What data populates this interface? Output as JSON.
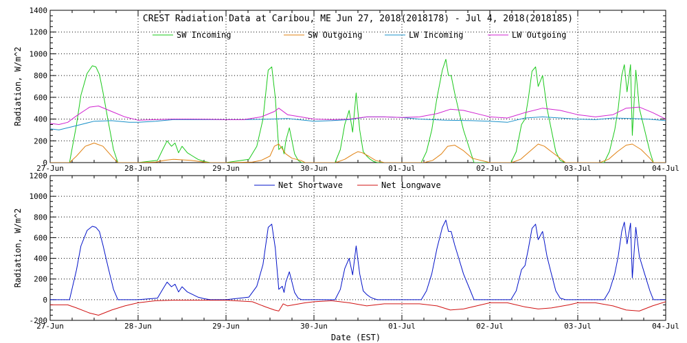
{
  "chart_data": [
    {
      "type": "line",
      "title": "CREST Radiation Data at Caribou, ME   Jun 27, 2018(2018178) - Jul  4, 2018(2018185)",
      "ylabel": "Radiation, W/m^2",
      "xlabel": "",
      "ylim": [
        0,
        1400
      ],
      "yticks": [
        0,
        200,
        400,
        600,
        800,
        1000,
        1200,
        1400
      ],
      "xlim": [
        0,
        7
      ],
      "xtick_labels": [
        "27-Jun",
        "28-Jun",
        "29-Jun",
        "30-Jun",
        "01-Jul",
        "02-Jul",
        "03-Jul",
        "04-Jul"
      ],
      "grid": true,
      "legend_placement": "top",
      "series": [
        {
          "name": "SW Incoming",
          "color": "#19c819",
          "x": [
            0,
            0.22,
            0.3,
            0.35,
            0.42,
            0.48,
            0.52,
            0.56,
            0.6,
            0.66,
            0.72,
            0.77,
            1.0,
            1.22,
            1.28,
            1.33,
            1.38,
            1.42,
            1.46,
            1.5,
            1.56,
            1.62,
            1.68,
            1.75,
            1.82,
            2.0,
            2.26,
            2.35,
            2.42,
            2.48,
            2.52,
            2.56,
            2.6,
            2.64,
            2.66,
            2.68,
            2.72,
            2.78,
            2.82,
            2.86,
            2.88,
            2.92,
            3.0,
            3.24,
            3.3,
            3.35,
            3.4,
            3.44,
            3.48,
            3.52,
            3.56,
            3.6,
            3.64,
            3.68,
            3.72,
            3.78,
            3.85,
            4.0,
            4.22,
            4.28,
            4.34,
            4.4,
            4.46,
            4.5,
            4.53,
            4.56,
            4.6,
            4.64,
            4.7,
            4.78,
            4.82,
            5.0,
            5.24,
            5.3,
            5.36,
            5.4,
            5.44,
            5.48,
            5.52,
            5.55,
            5.6,
            5.65,
            5.7,
            5.75,
            5.8,
            5.86,
            6.0,
            6.24,
            6.3,
            6.36,
            6.42,
            6.46,
            6.5,
            6.53,
            6.56,
            6.6,
            6.62,
            6.66,
            6.7,
            6.76,
            6.82,
            6.86,
            7.0
          ],
          "y": [
            0,
            0,
            350,
            620,
            820,
            890,
            880,
            810,
            650,
            380,
            120,
            0,
            0,
            20,
            120,
            200,
            150,
            180,
            90,
            150,
            90,
            60,
            30,
            10,
            0,
            0,
            30,
            150,
            400,
            850,
            880,
            600,
            120,
            150,
            80,
            200,
            320,
            80,
            20,
            0,
            0,
            0,
            0,
            0,
            120,
            350,
            480,
            280,
            640,
            300,
            100,
            60,
            30,
            10,
            0,
            0,
            0,
            0,
            0,
            100,
            300,
            600,
            850,
            950,
            800,
            800,
            640,
            500,
            300,
            100,
            0,
            0,
            0,
            100,
            350,
            400,
            600,
            840,
            880,
            700,
            800,
            500,
            300,
            100,
            20,
            0,
            0,
            0,
            0,
            100,
            300,
            500,
            800,
            900,
            650,
            900,
            250,
            850,
            500,
            300,
            100,
            0,
            0
          ]
        },
        {
          "name": "SW Outgoing",
          "color": "#e08010",
          "x": [
            0,
            0.22,
            0.3,
            0.4,
            0.5,
            0.6,
            0.72,
            0.77,
            1.0,
            1.2,
            1.3,
            1.4,
            1.5,
            1.6,
            1.7,
            1.8,
            2.0,
            2.3,
            2.4,
            2.5,
            2.55,
            2.6,
            2.68,
            2.75,
            2.85,
            2.9,
            3.0,
            3.25,
            3.35,
            3.45,
            3.5,
            3.55,
            3.62,
            3.7,
            3.8,
            4.0,
            4.25,
            4.35,
            4.45,
            4.52,
            4.6,
            4.7,
            4.8,
            5.0,
            5.25,
            5.35,
            5.45,
            5.55,
            5.62,
            5.7,
            5.8,
            5.86,
            6.0,
            6.25,
            6.35,
            6.45,
            6.55,
            6.62,
            6.72,
            6.82,
            6.86,
            7.0
          ],
          "y": [
            0,
            0,
            60,
            150,
            180,
            150,
            40,
            0,
            0,
            5,
            20,
            30,
            25,
            20,
            10,
            0,
            0,
            5,
            20,
            60,
            150,
            170,
            80,
            40,
            20,
            0,
            0,
            0,
            30,
            80,
            100,
            90,
            60,
            20,
            0,
            0,
            0,
            20,
            80,
            150,
            160,
            110,
            40,
            0,
            0,
            30,
            100,
            170,
            150,
            100,
            40,
            0,
            0,
            0,
            30,
            100,
            160,
            170,
            120,
            40,
            0,
            0
          ]
        },
        {
          "name": "LW Incoming",
          "color": "#1890c8",
          "x": [
            0,
            0.1,
            0.3,
            0.5,
            0.7,
            0.9,
            1.0,
            1.2,
            1.4,
            1.6,
            1.8,
            2.0,
            2.2,
            2.5,
            2.7,
            3.0,
            3.2,
            3.4,
            3.6,
            3.8,
            4.0,
            4.2,
            4.5,
            4.8,
            5.0,
            5.2,
            5.4,
            5.6,
            5.8,
            6.0,
            6.2,
            6.4,
            6.6,
            6.8,
            7.0
          ],
          "y": [
            310,
            300,
            340,
            380,
            385,
            370,
            370,
            380,
            395,
            395,
            395,
            395,
            395,
            400,
            405,
            380,
            385,
            395,
            420,
            420,
            415,
            400,
            390,
            385,
            380,
            370,
            410,
            420,
            410,
            400,
            395,
            410,
            405,
            400,
            385
          ]
        },
        {
          "name": "LW Outgoing",
          "color": "#d020d0",
          "x": [
            0,
            0.1,
            0.2,
            0.3,
            0.45,
            0.55,
            0.7,
            0.85,
            1.0,
            1.2,
            1.4,
            1.6,
            1.8,
            2.0,
            2.2,
            2.4,
            2.55,
            2.6,
            2.7,
            2.85,
            3.0,
            3.2,
            3.4,
            3.6,
            3.8,
            4.0,
            4.2,
            4.4,
            4.55,
            4.7,
            4.9,
            5.0,
            5.2,
            5.4,
            5.6,
            5.8,
            6.0,
            6.2,
            6.4,
            6.55,
            6.7,
            6.85,
            7.0
          ],
          "y": [
            360,
            350,
            370,
            430,
            510,
            520,
            470,
            420,
            390,
            395,
            400,
            400,
            398,
            395,
            395,
            420,
            470,
            500,
            440,
            420,
            400,
            395,
            400,
            420,
            420,
            415,
            420,
            450,
            490,
            480,
            440,
            420,
            410,
            460,
            500,
            480,
            440,
            420,
            440,
            500,
            510,
            460,
            400
          ]
        }
      ]
    },
    {
      "type": "line",
      "title": "",
      "ylabel": "Radiation, W/m^2",
      "xlabel": "Date (EST)",
      "ylim": [
        -200,
        1200
      ],
      "yticks": [
        -200,
        0,
        200,
        400,
        600,
        800,
        1000,
        1200
      ],
      "xlim": [
        0,
        7
      ],
      "xtick_labels": [
        "27-Jun",
        "28-Jun",
        "29-Jun",
        "30-Jun",
        "01-Jul",
        "02-Jul",
        "03-Jul",
        "04-Jul"
      ],
      "grid": true,
      "legend_placement": "top",
      "series": [
        {
          "name": "Net Shortwave",
          "color": "#0010c8",
          "x": [
            0,
            0.22,
            0.3,
            0.35,
            0.42,
            0.48,
            0.52,
            0.56,
            0.6,
            0.66,
            0.72,
            0.77,
            1.0,
            1.22,
            1.28,
            1.33,
            1.38,
            1.42,
            1.46,
            1.5,
            1.56,
            1.62,
            1.68,
            1.75,
            1.82,
            2.0,
            2.26,
            2.35,
            2.42,
            2.48,
            2.52,
            2.56,
            2.6,
            2.64,
            2.66,
            2.68,
            2.72,
            2.78,
            2.82,
            2.86,
            2.88,
            2.92,
            3.0,
            3.24,
            3.3,
            3.35,
            3.4,
            3.44,
            3.48,
            3.52,
            3.56,
            3.6,
            3.64,
            3.68,
            3.72,
            3.78,
            3.85,
            4.0,
            4.22,
            4.28,
            4.34,
            4.4,
            4.46,
            4.5,
            4.53,
            4.56,
            4.6,
            4.64,
            4.7,
            4.78,
            4.82,
            5.0,
            5.24,
            5.3,
            5.36,
            5.4,
            5.44,
            5.48,
            5.52,
            5.55,
            5.6,
            5.65,
            5.7,
            5.75,
            5.8,
            5.86,
            6.0,
            6.24,
            6.3,
            6.36,
            6.42,
            6.46,
            6.5,
            6.53,
            6.56,
            6.6,
            6.62,
            6.66,
            6.7,
            6.76,
            6.82,
            6.86,
            7.0
          ],
          "y": [
            0,
            0,
            290,
            520,
            670,
            710,
            700,
            660,
            530,
            310,
            100,
            0,
            0,
            15,
            100,
            170,
            125,
            150,
            75,
            125,
            75,
            50,
            25,
            10,
            0,
            0,
            25,
            130,
            340,
            700,
            730,
            500,
            100,
            130,
            70,
            170,
            270,
            70,
            15,
            0,
            0,
            0,
            0,
            0,
            100,
            300,
            400,
            240,
            520,
            250,
            85,
            50,
            25,
            10,
            0,
            0,
            0,
            0,
            0,
            85,
            250,
            500,
            700,
            770,
            660,
            660,
            530,
            420,
            250,
            85,
            0,
            0,
            0,
            85,
            290,
            330,
            500,
            690,
            730,
            580,
            660,
            420,
            250,
            85,
            15,
            0,
            0,
            0,
            0,
            85,
            250,
            420,
            660,
            750,
            540,
            740,
            210,
            700,
            420,
            250,
            85,
            0,
            0
          ]
        },
        {
          "name": "Net Longwave",
          "color": "#d01010",
          "x": [
            0,
            0.2,
            0.3,
            0.45,
            0.55,
            0.7,
            0.85,
            1.0,
            1.2,
            1.4,
            1.6,
            1.8,
            2.0,
            2.3,
            2.45,
            2.55,
            2.6,
            2.65,
            2.7,
            2.9,
            3.0,
            3.2,
            3.4,
            3.6,
            3.8,
            4.0,
            4.2,
            4.4,
            4.55,
            4.7,
            4.9,
            5.0,
            5.2,
            5.4,
            5.55,
            5.7,
            5.9,
            6.0,
            6.2,
            6.4,
            6.55,
            6.7,
            6.85,
            7.0
          ],
          "y": [
            -50,
            -50,
            -80,
            -130,
            -150,
            -100,
            -60,
            -30,
            -10,
            -5,
            -5,
            -5,
            -5,
            -20,
            -70,
            -100,
            -110,
            -40,
            -60,
            -30,
            -20,
            -10,
            -30,
            -60,
            -40,
            -40,
            -40,
            -60,
            -100,
            -90,
            -50,
            -30,
            -30,
            -70,
            -90,
            -80,
            -50,
            -30,
            -30,
            -60,
            -100,
            -110,
            -60,
            -20
          ]
        }
      ]
    }
  ]
}
